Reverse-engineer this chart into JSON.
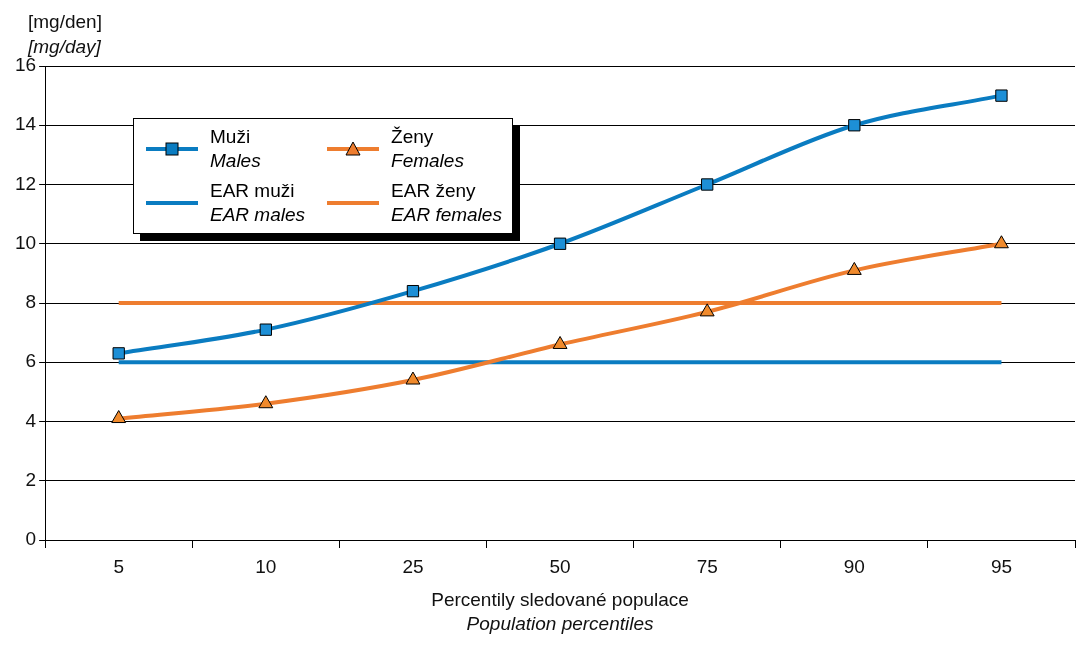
{
  "chart_data": {
    "type": "line",
    "ylabel": "[mg/den]\n[mg/day]",
    "xlabel": "Percentily sledované populace\nPopulation percentiles",
    "categories": [
      "5",
      "10",
      "25",
      "50",
      "75",
      "90",
      "95"
    ],
    "series": [
      {
        "name": "Muži\nMales",
        "color": "#0a7cc1",
        "marker": "square",
        "values": [
          6.3,
          7.1,
          8.4,
          10,
          12,
          14,
          15
        ]
      },
      {
        "name": "Ženy\nFemales",
        "color": "#ee7d2f",
        "marker": "triangle",
        "values": [
          4.1,
          4.6,
          5.4,
          6.6,
          7.7,
          9.1,
          10
        ]
      },
      {
        "name": "EAR muži\nEAR males",
        "color": "#0a7cc1",
        "marker": "none",
        "values": [
          6,
          6,
          6,
          6,
          6,
          6,
          6
        ]
      },
      {
        "name": "EAR ženy\nEAR females",
        "color": "#ee7d2f",
        "marker": "none",
        "values": [
          8,
          8,
          8,
          8,
          8,
          8,
          8
        ]
      }
    ],
    "ylim": [
      0,
      16
    ],
    "yticks": [
      0,
      2,
      4,
      6,
      8,
      10,
      12,
      14,
      16
    ],
    "grid": "y",
    "legend": "top left"
  }
}
